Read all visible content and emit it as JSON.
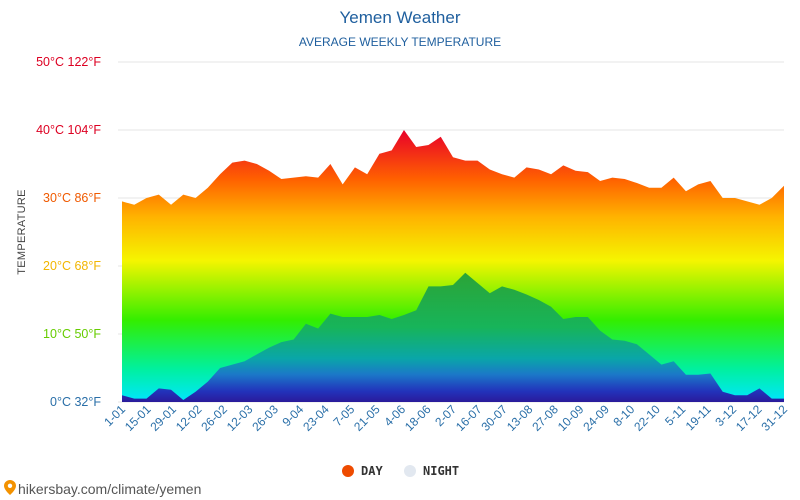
{
  "chart_data": {
    "type": "area",
    "title": "Yemen Weather",
    "subtitle": "AVERAGE WEEKLY TEMPERATURE",
    "ylabel": "TEMPERATURE",
    "ylim": [
      0,
      50
    ],
    "yticks": [
      {
        "value": 0,
        "label": "0°C 32°F",
        "color": "#2a6fa8"
      },
      {
        "value": 10,
        "label": "10°C 50°F",
        "color": "#66cc00"
      },
      {
        "value": 20,
        "label": "20°C 68°F",
        "color": "#f2b600"
      },
      {
        "value": 30,
        "label": "30°C 86°F",
        "color": "#f05a00"
      },
      {
        "value": 40,
        "label": "40°C 104°F",
        "color": "#dd0022"
      },
      {
        "value": 50,
        "label": "50°C 122°F",
        "color": "#dd0022"
      }
    ],
    "xtick_labels": [
      "1-01",
      "15-01",
      "29-01",
      "12-02",
      "26-02",
      "12-03",
      "26-03",
      "9-04",
      "23-04",
      "7-05",
      "21-05",
      "4-06",
      "18-06",
      "2-07",
      "16-07",
      "30-07",
      "13-08",
      "27-08",
      "10-09",
      "24-09",
      "8-10",
      "22-10",
      "5-11",
      "19-11",
      "3-12",
      "17-12",
      "31-12"
    ],
    "series": [
      {
        "name": "DAY",
        "color": "#ee4b00",
        "values": [
          29.5,
          29.0,
          30.0,
          30.5,
          29.0,
          30.5,
          30.0,
          31.5,
          33.5,
          35.2,
          35.5,
          35.0,
          34.0,
          32.8,
          33.0,
          33.2,
          33.0,
          35.0,
          32.0,
          34.5,
          33.5,
          36.5,
          37.0,
          40.0,
          37.5,
          37.8,
          39.0,
          36.0,
          35.5,
          35.5,
          34.2,
          33.5,
          33.0,
          34.5,
          34.2,
          33.5,
          34.8,
          34.0,
          33.8,
          32.5,
          33.0,
          32.8,
          32.2,
          31.5,
          31.5,
          33.0,
          31.0,
          32.0,
          32.5,
          30.0,
          30.0,
          29.5,
          29.0,
          30.0,
          31.8
        ]
      },
      {
        "name": "NIGHT",
        "color": "#dde5ee",
        "values": [
          1.0,
          0.5,
          0.5,
          2.0,
          1.8,
          0.3,
          1.5,
          3.0,
          5.0,
          5.5,
          6.0,
          7.0,
          8.0,
          8.8,
          9.2,
          11.5,
          10.8,
          13.0,
          12.5,
          12.5,
          12.5,
          12.8,
          12.2,
          12.8,
          13.5,
          17.0,
          17.0,
          17.2,
          19.0,
          17.5,
          16.0,
          17.0,
          16.5,
          15.8,
          15.0,
          14.0,
          12.2,
          12.5,
          12.5,
          10.5,
          9.2,
          9.0,
          8.5,
          7.0,
          5.5,
          6.0,
          4.0,
          4.0,
          4.2,
          1.5,
          1.0,
          1.0,
          2.0,
          0.5,
          0.5
        ]
      }
    ],
    "grid": true,
    "legend_position": "bottom"
  },
  "legend": {
    "day_label": "DAY",
    "night_label": "NIGHT",
    "day_color": "#ee4b00",
    "night_color": "#e2e8f0"
  },
  "footer": {
    "source_text": "hikersbay.com/climate/yemen",
    "pin_icon": "location-pin-icon"
  }
}
